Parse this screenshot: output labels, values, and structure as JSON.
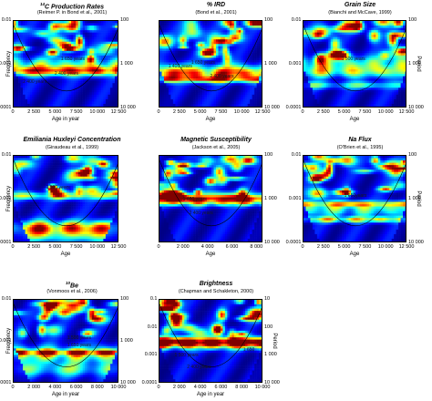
{
  "chart_data": [
    {
      "type": "heatmap",
      "title": "14C Production Rates",
      "title_pre": "14",
      "title_main": "C Production Rates",
      "subtitle": "(Reimer P. in Bond et al., 2001)",
      "xlabel": "Age in year",
      "ylabel": "Frequency",
      "y2label": "",
      "xticks": [
        "0",
        "2 500",
        "5 000",
        "7 500",
        "10 000",
        "12 500"
      ],
      "xtick_values": [
        0,
        2500,
        5000,
        7500,
        10000,
        12500
      ],
      "xlim": [
        0,
        12500
      ],
      "yticks": [
        "0.01",
        "0.001",
        "0.0001"
      ],
      "y2ticks": [
        "100",
        "1 000",
        "10 000"
      ],
      "annotations": [
        "1 650 years",
        "2 400 years",
        "2 400 years"
      ],
      "seed": 11
    },
    {
      "type": "heatmap",
      "title": "% IRD",
      "subtitle": "(Bond et al., 2001)",
      "xlabel": "Age",
      "ylabel": "",
      "y2label": "",
      "xticks": [
        "0",
        "2 500",
        "5 000",
        "7 500",
        "10 000",
        "12 500"
      ],
      "xtick_values": [
        0,
        2500,
        5000,
        7500,
        10000,
        12500
      ],
      "xlim": [
        0,
        12500
      ],
      "yticks": [],
      "y2ticks": [
        "100",
        "1 000",
        "10 000"
      ],
      "annotations": [
        "1 650 years",
        "1 400 years",
        "2 400 years"
      ],
      "seed": 23
    },
    {
      "type": "heatmap",
      "title": "Grain Size",
      "subtitle": "(Bianchi and McCave, 1999)",
      "xlabel": "Age",
      "ylabel": "",
      "y2label": "Period",
      "xticks": [
        "0",
        "2 500",
        "5 000",
        "7 500",
        "10 000",
        "12 500"
      ],
      "xtick_values": [
        0,
        2500,
        5000,
        7500,
        10000,
        12500
      ],
      "xlim": [
        0,
        12500
      ],
      "yticks": [
        "0.01",
        "0.001",
        "0.0001"
      ],
      "y2ticks": [
        "100",
        "1 000",
        "10 000"
      ],
      "annotations": [
        "1 500 years"
      ],
      "seed": 37
    },
    {
      "type": "heatmap",
      "title": "Emiliania Huxleyi Concentration",
      "subtitle": "(Giraudeau et al., 1999)",
      "xlabel": "Age",
      "ylabel": "Frequency",
      "y2label": "",
      "xticks": [
        "0",
        "2 500",
        "5 000",
        "7 500",
        "10 000",
        "12 500"
      ],
      "xtick_values": [
        0,
        2500,
        5000,
        7500,
        10000,
        12500
      ],
      "xlim": [
        0,
        12500
      ],
      "yticks": [
        "0.01",
        "0.001",
        "0.0001"
      ],
      "y2ticks": [],
      "annotations": [
        "1 500 years"
      ],
      "seed": 41
    },
    {
      "type": "heatmap",
      "title": "Magnetic Susceptibility",
      "subtitle": "(Jackson et al., 2005)",
      "xlabel": "Age",
      "ylabel": "",
      "y2label": "",
      "xticks": [
        "0",
        "2 000",
        "4 000",
        "6 000",
        "8 000"
      ],
      "xtick_values": [
        0,
        2000,
        4000,
        6000,
        8000
      ],
      "xlim": [
        0,
        8500
      ],
      "yticks": [],
      "y2ticks": [
        "100",
        "1 000",
        "10 000"
      ],
      "annotations": [
        "1 650 years",
        "2 400 years"
      ],
      "seed": 53
    },
    {
      "type": "heatmap",
      "title": "Na Flux",
      "subtitle": "(O'Brien et al., 1995)",
      "xlabel": "Age",
      "ylabel": "",
      "y2label": "Period",
      "xticks": [
        "0",
        "2 500",
        "5 000",
        "7 500",
        "10 000",
        "12 500"
      ],
      "xtick_values": [
        0,
        2500,
        5000,
        7500,
        10000,
        12500
      ],
      "xlim": [
        0,
        12500
      ],
      "yticks": [
        "0.01",
        "0.001",
        "0.0001"
      ],
      "y2ticks": [
        "100",
        "1 000",
        "10 000"
      ],
      "annotations": [
        "1 650years"
      ],
      "seed": 67
    },
    {
      "type": "heatmap",
      "title": "10Be",
      "title_pre": "10",
      "title_main": "Be",
      "subtitle": "(Vonmoos et al., 2006)",
      "xlabel": "Age in year",
      "ylabel": "Frequency",
      "y2label": "",
      "xticks": [
        "0",
        "2 000",
        "4 000",
        "6 000",
        "8 000",
        "10 000"
      ],
      "xtick_values": [
        0,
        2000,
        4000,
        6000,
        8000,
        10000
      ],
      "xlim": [
        0,
        10000
      ],
      "yticks": [
        "0.01",
        "0.001",
        "0.0001"
      ],
      "y2ticks": [
        "100",
        "1 000",
        "10 000"
      ],
      "annotations": [
        "1 500 years",
        "1 650 years"
      ],
      "seed": 79
    },
    {
      "type": "heatmap",
      "title": "Brightness",
      "subtitle": "(Chapman and Schakleton, 2000)",
      "xlabel": "Age in year",
      "ylabel": "",
      "y2label": "Period",
      "xticks": [
        "0",
        "2 000",
        "4 000",
        "6 000",
        "8 000",
        "10 000"
      ],
      "xtick_values": [
        0,
        2000,
        4000,
        6000,
        8000,
        10000
      ],
      "xlim": [
        0,
        10000
      ],
      "yticks": [
        "0.1",
        "0.01",
        "0.001",
        "0.0001"
      ],
      "y2ticks": [
        "10",
        "100",
        "1 000",
        "10 000"
      ],
      "annotations": [
        "1 500 years",
        "2 400 years",
        "1 650"
      ],
      "seed": 97
    }
  ]
}
